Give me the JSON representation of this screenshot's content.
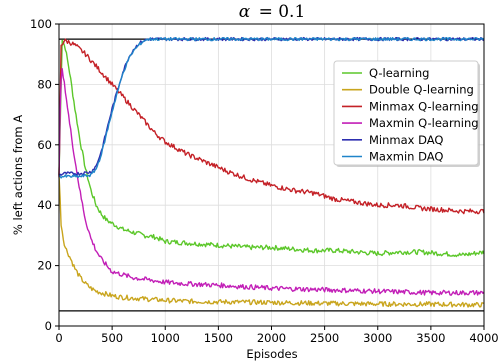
{
  "chart_data": {
    "type": "line",
    "title_symbol": "α",
    "title_value": "= 0.1",
    "xlabel": "Episodes",
    "ylabel": "% left actions from A",
    "xlim": [
      0,
      4000
    ],
    "ylim": [
      0,
      100
    ],
    "x_ticks": [
      0,
      500,
      1000,
      1500,
      2000,
      2500,
      3000,
      3500,
      4000
    ],
    "y_ticks": [
      0,
      20,
      40,
      60,
      80,
      100
    ],
    "grid": true,
    "legend_position": "right",
    "reference_lines": [
      95,
      5
    ],
    "series": [
      {
        "name": "Q-learning",
        "color": "#5cc72a",
        "x": [
          0,
          30,
          60,
          100,
          150,
          200,
          250,
          300,
          350,
          400,
          450,
          500,
          600,
          700,
          800,
          900,
          1000,
          1200,
          1400,
          1600,
          1800,
          2000,
          2200,
          2400,
          2600,
          2800,
          3000,
          3200,
          3400,
          3600,
          3800,
          4000
        ],
        "y": [
          50,
          95,
          92,
          84,
          72,
          61,
          52,
          45,
          40,
          37,
          35,
          34,
          32,
          31,
          30,
          29.5,
          28,
          27.5,
          27,
          26.5,
          26,
          26,
          25.5,
          25,
          25,
          24.5,
          24,
          24.5,
          24.5,
          24,
          23.5,
          24.5
        ]
      },
      {
        "name": "Double Q-learning",
        "color": "#c9a51e",
        "x": [
          0,
          10,
          20,
          40,
          60,
          100,
          150,
          200,
          250,
          300,
          350,
          400,
          500,
          600,
          800,
          1000,
          1200,
          1500,
          2000,
          2500,
          3000,
          3500,
          4000
        ],
        "y": [
          50,
          42,
          34,
          29,
          26,
          23,
          19,
          16,
          14,
          12.5,
          11.5,
          11,
          10,
          9.5,
          9,
          8.5,
          8.2,
          8,
          7.8,
          7.5,
          7.3,
          7.2,
          7
        ]
      },
      {
        "name": "Minmax Q-learning",
        "color": "#c42127",
        "x": [
          0,
          20,
          50,
          100,
          150,
          200,
          250,
          300,
          350,
          400,
          450,
          500,
          600,
          700,
          800,
          900,
          1000,
          1100,
          1200,
          1400,
          1600,
          1800,
          2000,
          2200,
          2400,
          2600,
          2800,
          3000,
          3200,
          3400,
          3600,
          3800,
          4000
        ],
        "y": [
          50,
          93,
          94.5,
          94,
          93,
          91.5,
          90,
          88,
          86,
          84,
          82,
          80,
          76,
          72,
          68,
          64,
          61,
          59,
          57,
          54,
          51,
          48.5,
          46.5,
          45,
          44,
          42,
          41,
          40,
          40,
          39,
          38.5,
          38,
          38
        ]
      },
      {
        "name": "Maxmin Q-learning",
        "color": "#c21fb7",
        "x": [
          0,
          15,
          30,
          60,
          100,
          150,
          200,
          250,
          300,
          350,
          400,
          450,
          500,
          600,
          700,
          800,
          900,
          1000,
          1200,
          1500,
          2000,
          2500,
          3000,
          3500,
          4000
        ],
        "y": [
          50,
          80,
          84.5,
          78,
          67,
          55,
          44,
          35,
          29,
          25,
          22,
          20,
          18,
          17,
          16,
          15.5,
          15,
          14.5,
          14,
          13.5,
          12.5,
          12,
          11.5,
          11,
          11
        ]
      },
      {
        "name": "Minmax DAQ",
        "color": "#2d2fb0",
        "x": [
          0,
          50,
          100,
          200,
          300,
          350,
          400,
          450,
          500,
          550,
          600,
          650,
          700,
          750,
          800,
          850,
          900,
          1000,
          1500,
          2000,
          2500,
          3000,
          3500,
          4000
        ],
        "y": [
          50,
          50.5,
          50.5,
          50.5,
          51,
          53,
          58,
          65,
          72,
          78,
          84,
          88.5,
          91.5,
          93.5,
          94.5,
          95,
          95,
          95,
          95,
          95,
          95,
          95,
          95,
          95
        ]
      },
      {
        "name": "Maxmin DAQ",
        "color": "#1f84c9",
        "x": [
          0,
          50,
          100,
          200,
          300,
          350,
          400,
          450,
          500,
          550,
          600,
          650,
          700,
          750,
          800,
          850,
          900,
          1000,
          1500,
          2000,
          2500,
          3000,
          3500,
          4000
        ],
        "y": [
          49.5,
          49.5,
          49.5,
          49.5,
          50,
          52,
          57,
          64,
          71,
          77.5,
          83.5,
          88,
          91,
          93,
          94.5,
          95,
          95,
          95,
          95,
          95,
          95,
          95,
          95,
          95
        ]
      }
    ]
  }
}
